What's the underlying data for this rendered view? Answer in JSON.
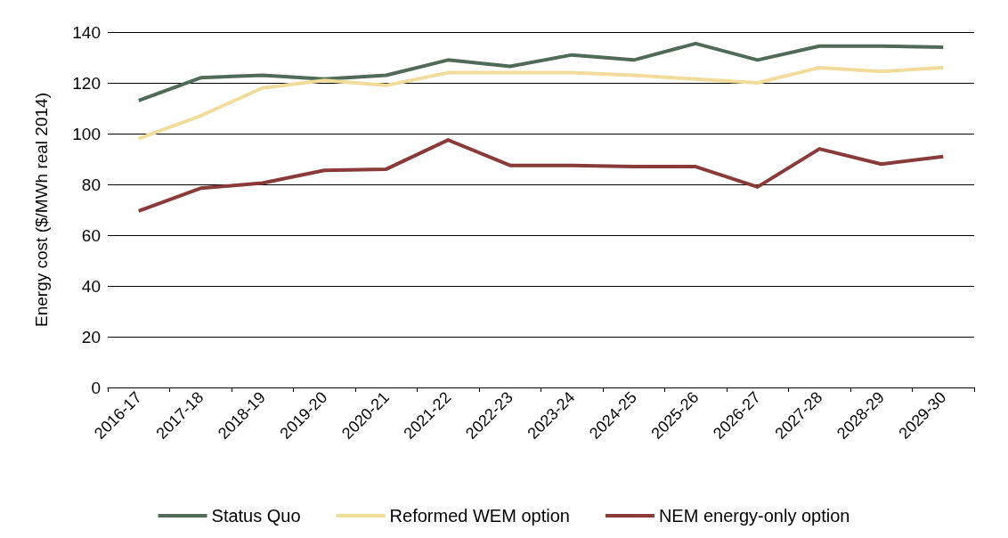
{
  "chart_data": {
    "type": "line",
    "ylabel": "Energy cost ($/MWh real 2014)",
    "categories": [
      "2016-17",
      "2017-18",
      "2018-19",
      "2019-20",
      "2020-21",
      "2021-22",
      "2022-23",
      "2023-24",
      "2024-25",
      "2025-26",
      "2026-27",
      "2027-28",
      "2028-29",
      "2029-30"
    ],
    "series": [
      {
        "name": "Status Quo",
        "color": "#4f6b58",
        "values": [
          113,
          122,
          123,
          121.5,
          123,
          129,
          126.5,
          131,
          129,
          135.5,
          129,
          134.5,
          134.5,
          134
        ]
      },
      {
        "name": "Reformed WEM option",
        "color": "#f2dc9b",
        "values": [
          98,
          107,
          118,
          121,
          119,
          124,
          124,
          124,
          123,
          121.5,
          120,
          126,
          124.5,
          126
        ]
      },
      {
        "name": "NEM energy-only option",
        "color": "#8b3a3a",
        "values": [
          69.5,
          78.5,
          80.5,
          85.5,
          86,
          97.5,
          87.5,
          87.5,
          87,
          87,
          79,
          94,
          88,
          91
        ]
      }
    ],
    "ylim": [
      0,
      140
    ],
    "yticks": [
      0,
      20,
      40,
      60,
      80,
      100,
      120,
      140
    ],
    "grid": "y",
    "legend": "bottom",
    "marker": "none",
    "line_style": "solid"
  }
}
